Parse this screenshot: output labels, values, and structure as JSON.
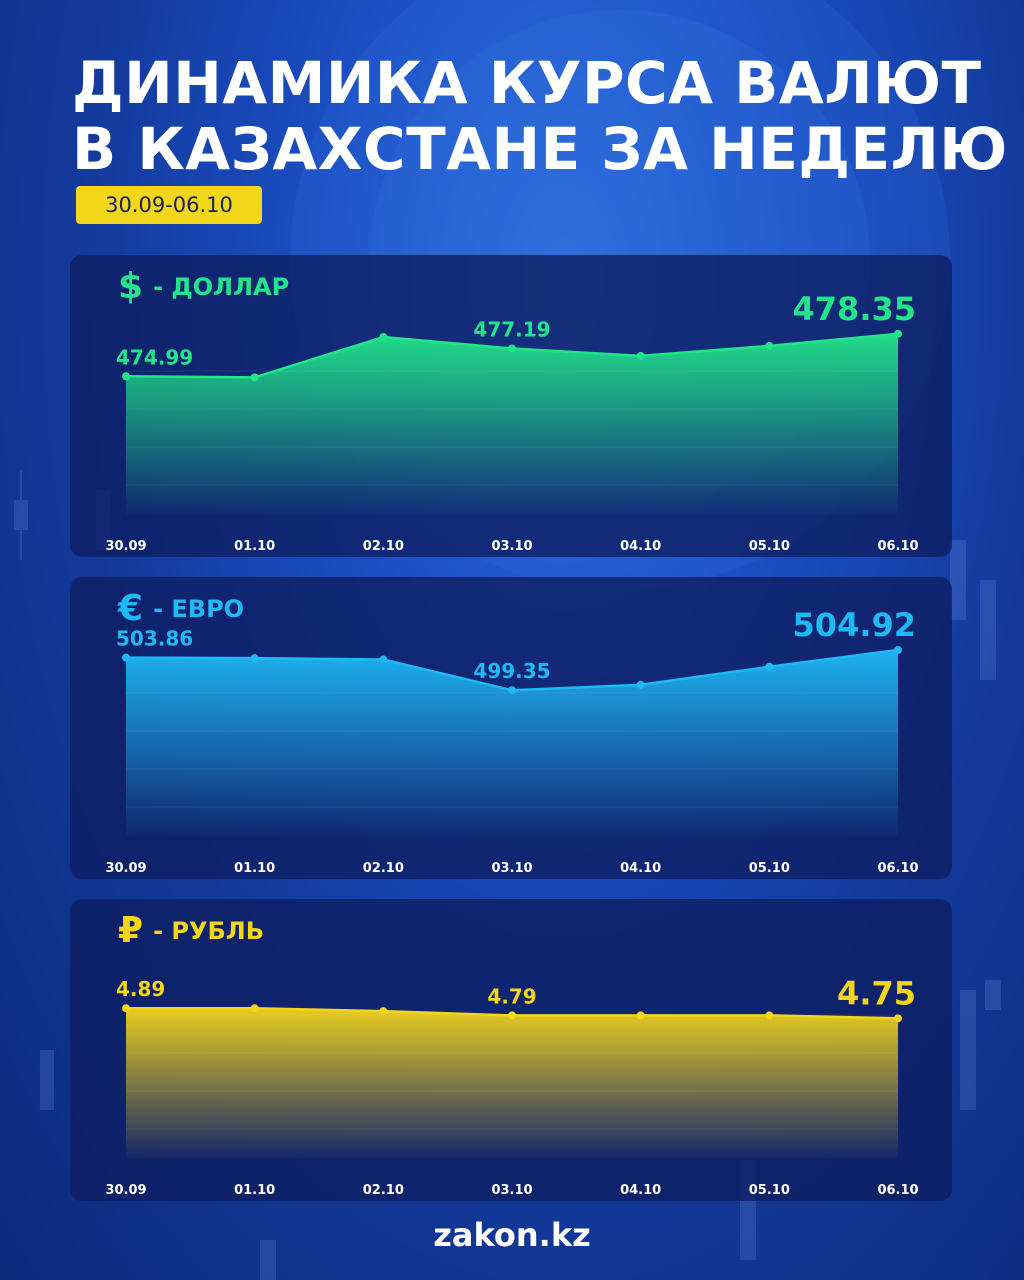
{
  "title": {
    "line1": "ДИНАМИКА КУРСА ВАЛЮТ",
    "line2": "В КАЗАХСТАНЕ ЗА НЕДЕЛЮ"
  },
  "date_range": "30.09-06.10",
  "footer": "zakon.kz",
  "colors": {
    "usd": "#22e58a",
    "eur": "#1fb9f5",
    "rub": "#f3d51a",
    "badge": "#f3d51a"
  },
  "chart_data": [
    {
      "type": "area",
      "symbol": "$",
      "title": "- ДОЛЛАР",
      "categories": [
        "30.09",
        "01.10",
        "02.10",
        "03.10",
        "04.10",
        "05.10",
        "06.10"
      ],
      "values": [
        474.99,
        474.9,
        478.1,
        477.19,
        476.6,
        477.4,
        478.35
      ],
      "labels": [
        {
          "index": 0,
          "text": "474.99"
        },
        {
          "index": 3,
          "text": "477.19"
        },
        {
          "index": 6,
          "text": "478.35"
        }
      ],
      "ylim": [
        464,
        480
      ],
      "grid": true
    },
    {
      "type": "area",
      "symbol": "€",
      "title": "- ЕВРО",
      "categories": [
        "30.09",
        "01.10",
        "02.10",
        "03.10",
        "04.10",
        "05.10",
        "06.10"
      ],
      "values": [
        503.86,
        503.8,
        503.6,
        499.35,
        500.1,
        502.6,
        504.92
      ],
      "labels": [
        {
          "index": 0,
          "text": "503.86"
        },
        {
          "index": 3,
          "text": "499.35"
        },
        {
          "index": 6,
          "text": "504.92"
        }
      ],
      "ylim": [
        479,
        507
      ],
      "grid": true
    },
    {
      "type": "area",
      "symbol": "₽",
      "title": "- РУБЛЬ",
      "categories": [
        "30.09",
        "01.10",
        "02.10",
        "03.10",
        "04.10",
        "05.10",
        "06.10"
      ],
      "values": [
        4.89,
        4.89,
        4.85,
        4.79,
        4.79,
        4.79,
        4.75
      ],
      "labels": [
        {
          "index": 0,
          "text": "4.89"
        },
        {
          "index": 3,
          "text": "4.79"
        },
        {
          "index": 6,
          "text": "4.75"
        }
      ],
      "ylim": [
        2.8,
        5.6
      ],
      "grid": true
    }
  ]
}
